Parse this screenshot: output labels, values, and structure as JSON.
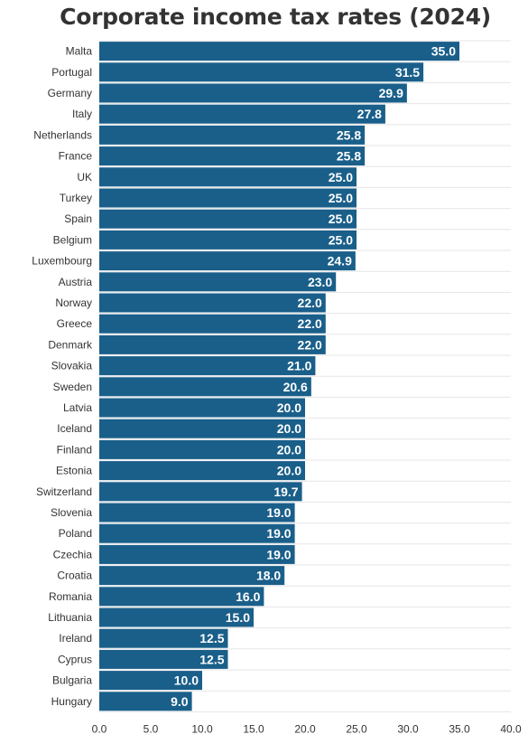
{
  "chart_data": {
    "type": "bar",
    "orientation": "horizontal",
    "title": "Corporate income tax rates (2024)",
    "categories": [
      "Malta",
      "Portugal",
      "Germany",
      "Italy",
      "Netherlands",
      "France",
      "UK",
      "Turkey",
      "Spain",
      "Belgium",
      "Luxembourg",
      "Austria",
      "Norway",
      "Greece",
      "Denmark",
      "Slovakia",
      "Sweden",
      "Latvia",
      "Iceland",
      "Finland",
      "Estonia",
      "Switzerland",
      "Slovenia",
      "Poland",
      "Czechia",
      "Croatia",
      "Romania",
      "Lithuania",
      "Ireland",
      "Cyprus",
      "Bulgaria",
      "Hungary"
    ],
    "values": [
      35.0,
      31.5,
      29.9,
      27.8,
      25.8,
      25.8,
      25.0,
      25.0,
      25.0,
      25.0,
      24.9,
      23.0,
      22.0,
      22.0,
      22.0,
      21.0,
      20.6,
      20.0,
      20.0,
      20.0,
      20.0,
      19.7,
      19.0,
      19.0,
      19.0,
      18.0,
      16.0,
      15.0,
      12.5,
      12.5,
      10.0,
      9.0
    ],
    "value_labels": [
      "35.0",
      "31.5",
      "29.9",
      "27.8",
      "25.8",
      "25.8",
      "25.0",
      "25.0",
      "25.0",
      "25.0",
      "24.9",
      "23.0",
      "22.0",
      "22.0",
      "22.0",
      "21.0",
      "20.6",
      "20.0",
      "20.0",
      "20.0",
      "20.0",
      "19.7",
      "19.0",
      "19.0",
      "19.0",
      "18.0",
      "16.0",
      "15.0",
      "12.5",
      "12.5",
      "10.0",
      "9.0"
    ],
    "xlim": [
      0,
      40
    ],
    "x_ticks": [
      "0.0",
      "5.0",
      "10.0",
      "15.0",
      "20.0",
      "25.0",
      "30.0",
      "35.0",
      "40.0"
    ],
    "xlabel": "",
    "ylabel": "",
    "grid": true,
    "colors": {
      "bar": "#1a5f8a",
      "grid": "#e6e6e6",
      "text": "#333333"
    }
  }
}
